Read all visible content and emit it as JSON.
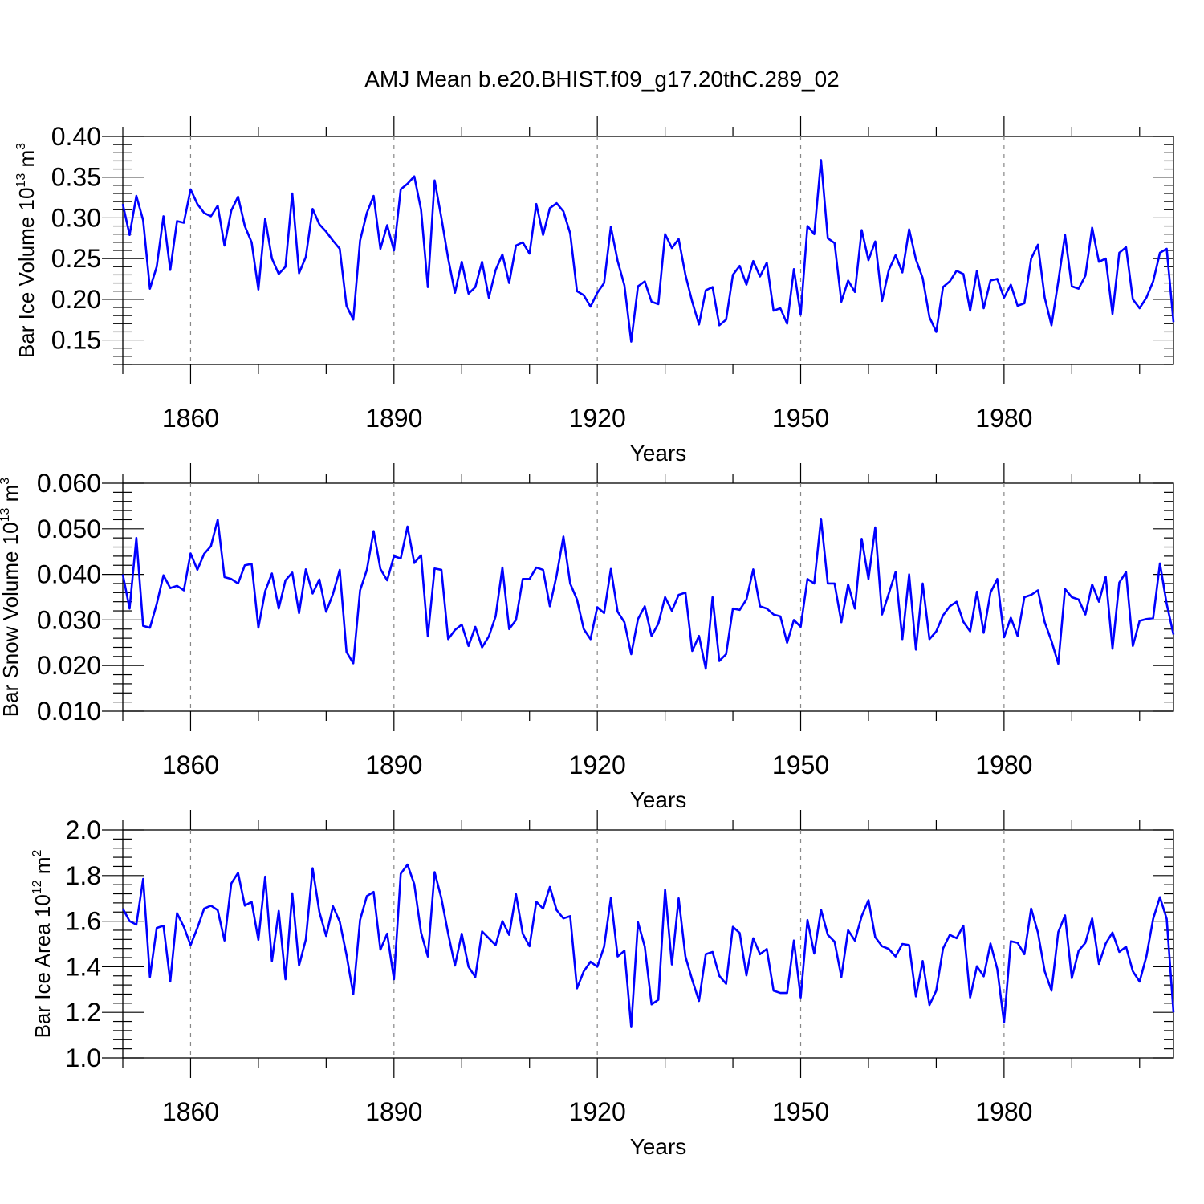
{
  "figure": {
    "title": "AMJ Mean b.e20.BHIST.f09_g17.20thC.289_02",
    "line_color": "#0000ff"
  },
  "chart_data": [
    {
      "type": "line",
      "title": "AMJ Mean b.e20.BHIST.f09_g17.20thC.289_02",
      "xlabel": "Years",
      "ylabel": "Bar Ice Volume",
      "ylabel_unit_base": "10",
      "ylabel_unit_exp": "13",
      "ylabel_unit_sym": "m",
      "ylabel_unit_sym_exp": "3",
      "xlim": [
        1850,
        2005
      ],
      "ylim": [
        0.12,
        0.4
      ],
      "xticks": [
        1860,
        1890,
        1920,
        1950,
        1980
      ],
      "xtick_labels": [
        "1860",
        "1890",
        "1920",
        "1950",
        "1980"
      ],
      "yticks": [
        0.15,
        0.2,
        0.25,
        0.3,
        0.35,
        0.4
      ],
      "ytick_labels": [
        "0.15",
        "0.20",
        "0.25",
        "0.30",
        "0.35",
        "0.40"
      ],
      "grid": "dashed vertical at major x ticks",
      "series": [
        {
          "name": "Bar Ice Volume",
          "x_start": 1850,
          "values": [
            0.317,
            0.279,
            0.327,
            0.297,
            0.213,
            0.24,
            0.302,
            0.236,
            0.296,
            0.294,
            0.335,
            0.317,
            0.306,
            0.302,
            0.315,
            0.266,
            0.309,
            0.326,
            0.29,
            0.27,
            0.212,
            0.299,
            0.25,
            0.231,
            0.24,
            0.33,
            0.232,
            0.252,
            0.311,
            0.292,
            0.283,
            0.272,
            0.262,
            0.192,
            0.175,
            0.272,
            0.306,
            0.327,
            0.262,
            0.291,
            0.26,
            0.335,
            0.342,
            0.351,
            0.31,
            0.215,
            0.346,
            0.3,
            0.25,
            0.208,
            0.246,
            0.207,
            0.215,
            0.246,
            0.202,
            0.236,
            0.255,
            0.22,
            0.266,
            0.27,
            0.256,
            0.317,
            0.279,
            0.312,
            0.318,
            0.308,
            0.281,
            0.21,
            0.205,
            0.191,
            0.208,
            0.22,
            0.289,
            0.247,
            0.217,
            0.148,
            0.216,
            0.222,
            0.197,
            0.194,
            0.28,
            0.263,
            0.274,
            0.23,
            0.197,
            0.169,
            0.211,
            0.215,
            0.168,
            0.175,
            0.23,
            0.241,
            0.218,
            0.247,
            0.228,
            0.245,
            0.186,
            0.189,
            0.17,
            0.237,
            0.181,
            0.29,
            0.28,
            0.371,
            0.275,
            0.269,
            0.197,
            0.223,
            0.209,
            0.285,
            0.248,
            0.271,
            0.198,
            0.236,
            0.254,
            0.233,
            0.286,
            0.249,
            0.226,
            0.178,
            0.16,
            0.215,
            0.222,
            0.235,
            0.231,
            0.186,
            0.235,
            0.189,
            0.223,
            0.225,
            0.202,
            0.218,
            0.192,
            0.195,
            0.25,
            0.267,
            0.202,
            0.168,
            0.222,
            0.279,
            0.216,
            0.213,
            0.229,
            0.288,
            0.246,
            0.25,
            0.182,
            0.257,
            0.264,
            0.2,
            0.189,
            0.202,
            0.222,
            0.257,
            0.262,
            0.172
          ]
        }
      ]
    },
    {
      "type": "line",
      "xlabel": "Years",
      "ylabel": "Bar Snow Volume",
      "ylabel_unit_base": "10",
      "ylabel_unit_exp": "13",
      "ylabel_unit_sym": "m",
      "ylabel_unit_sym_exp": "3",
      "xlim": [
        1850,
        2005
      ],
      "ylim": [
        0.01,
        0.06
      ],
      "xticks": [
        1860,
        1890,
        1920,
        1950,
        1980
      ],
      "xtick_labels": [
        "1860",
        "1890",
        "1920",
        "1950",
        "1980"
      ],
      "yticks": [
        0.01,
        0.02,
        0.03,
        0.04,
        0.05,
        0.06
      ],
      "ytick_labels": [
        "0.010",
        "0.020",
        "0.030",
        "0.040",
        "0.050",
        "0.060"
      ],
      "grid": "dashed vertical at major x ticks",
      "series": [
        {
          "name": "Bar Snow Volume",
          "x_start": 1850,
          "values": [
            0.04,
            0.0325,
            0.048,
            0.0287,
            0.0283,
            0.0335,
            0.0398,
            0.037,
            0.0375,
            0.0365,
            0.0446,
            0.041,
            0.0445,
            0.0462,
            0.052,
            0.0394,
            0.039,
            0.038,
            0.042,
            0.0423,
            0.0283,
            0.0363,
            0.0402,
            0.0325,
            0.0387,
            0.0404,
            0.0315,
            0.0411,
            0.0358,
            0.0389,
            0.0318,
            0.0357,
            0.041,
            0.023,
            0.0205,
            0.0365,
            0.041,
            0.0495,
            0.0412,
            0.0387,
            0.044,
            0.0435,
            0.0505,
            0.0425,
            0.0442,
            0.0264,
            0.0413,
            0.041,
            0.0258,
            0.0278,
            0.029,
            0.0243,
            0.0285,
            0.024,
            0.0264,
            0.0308,
            0.0415,
            0.028,
            0.03,
            0.039,
            0.039,
            0.0415,
            0.041,
            0.033,
            0.0398,
            0.0483,
            0.038,
            0.0345,
            0.028,
            0.0258,
            0.0328,
            0.0315,
            0.0412,
            0.0318,
            0.0295,
            0.0225,
            0.0302,
            0.033,
            0.0265,
            0.0292,
            0.035,
            0.032,
            0.0355,
            0.036,
            0.0232,
            0.0265,
            0.0193,
            0.035,
            0.021,
            0.0225,
            0.0325,
            0.0322,
            0.0345,
            0.0411,
            0.033,
            0.0325,
            0.0312,
            0.0308,
            0.025,
            0.03,
            0.0285,
            0.039,
            0.038,
            0.0522,
            0.038,
            0.038,
            0.0295,
            0.0378,
            0.0325,
            0.0478,
            0.039,
            0.0503,
            0.0312,
            0.0358,
            0.0405,
            0.0258,
            0.04,
            0.0235,
            0.038,
            0.0258,
            0.0275,
            0.031,
            0.033,
            0.034,
            0.0296,
            0.0275,
            0.0362,
            0.0272,
            0.036,
            0.039,
            0.0262,
            0.0305,
            0.0265,
            0.035,
            0.0355,
            0.0365,
            0.0295,
            0.0254,
            0.0204,
            0.0368,
            0.035,
            0.0345,
            0.0312,
            0.0378,
            0.034,
            0.0395,
            0.0237,
            0.0382,
            0.0405,
            0.0243,
            0.0298,
            0.0302,
            0.0304,
            0.0424,
            0.0335,
            0.0268
          ]
        }
      ]
    },
    {
      "type": "line",
      "xlabel": "Years",
      "ylabel": "Bar Ice Area",
      "ylabel_unit_base": "10",
      "ylabel_unit_exp": "12",
      "ylabel_unit_sym": "m",
      "ylabel_unit_sym_exp": "2",
      "xlim": [
        1850,
        2005
      ],
      "ylim": [
        1.0,
        2.0
      ],
      "xticks": [
        1860,
        1890,
        1920,
        1950,
        1980
      ],
      "xtick_labels": [
        "1860",
        "1890",
        "1920",
        "1950",
        "1980"
      ],
      "yticks": [
        1.0,
        1.2,
        1.4,
        1.6,
        1.8,
        2.0
      ],
      "ytick_labels": [
        "1.0",
        "1.2",
        "1.4",
        "1.6",
        "1.8",
        "2.0"
      ],
      "grid": "dashed vertical at major x ticks",
      "series": [
        {
          "name": "Bar Ice Area",
          "x_start": 1850,
          "values": [
            1.655,
            1.6,
            1.585,
            1.785,
            1.355,
            1.57,
            1.58,
            1.335,
            1.635,
            1.575,
            1.495,
            1.57,
            1.655,
            1.668,
            1.648,
            1.515,
            1.765,
            1.812,
            1.668,
            1.685,
            1.518,
            1.795,
            1.425,
            1.645,
            1.345,
            1.722,
            1.405,
            1.52,
            1.832,
            1.64,
            1.535,
            1.665,
            1.598,
            1.452,
            1.28,
            1.605,
            1.71,
            1.728,
            1.475,
            1.545,
            1.345,
            1.808,
            1.848,
            1.762,
            1.55,
            1.445,
            1.815,
            1.7,
            1.545,
            1.405,
            1.545,
            1.4,
            1.355,
            1.555,
            1.525,
            1.495,
            1.6,
            1.54,
            1.718,
            1.545,
            1.49,
            1.685,
            1.655,
            1.75,
            1.648,
            1.612,
            1.622,
            1.305,
            1.38,
            1.422,
            1.4,
            1.488,
            1.702,
            1.445,
            1.47,
            1.135,
            1.595,
            1.488,
            1.235,
            1.255,
            1.738,
            1.41,
            1.7,
            1.445,
            1.342,
            1.25,
            1.455,
            1.465,
            1.36,
            1.325,
            1.575,
            1.548,
            1.362,
            1.525,
            1.455,
            1.478,
            1.295,
            1.285,
            1.285,
            1.515,
            1.265,
            1.605,
            1.458,
            1.65,
            1.54,
            1.51,
            1.355,
            1.56,
            1.515,
            1.622,
            1.692,
            1.53,
            1.49,
            1.478,
            1.445,
            1.5,
            1.495,
            1.27,
            1.425,
            1.232,
            1.295,
            1.48,
            1.54,
            1.525,
            1.58,
            1.265,
            1.402,
            1.358,
            1.502,
            1.39,
            1.155,
            1.512,
            1.505,
            1.455,
            1.655,
            1.55,
            1.38,
            1.295,
            1.552,
            1.625,
            1.35,
            1.47,
            1.505,
            1.612,
            1.412,
            1.502,
            1.55,
            1.465,
            1.488,
            1.38,
            1.335,
            1.445,
            1.61,
            1.705,
            1.61,
            1.2
          ]
        }
      ]
    }
  ]
}
